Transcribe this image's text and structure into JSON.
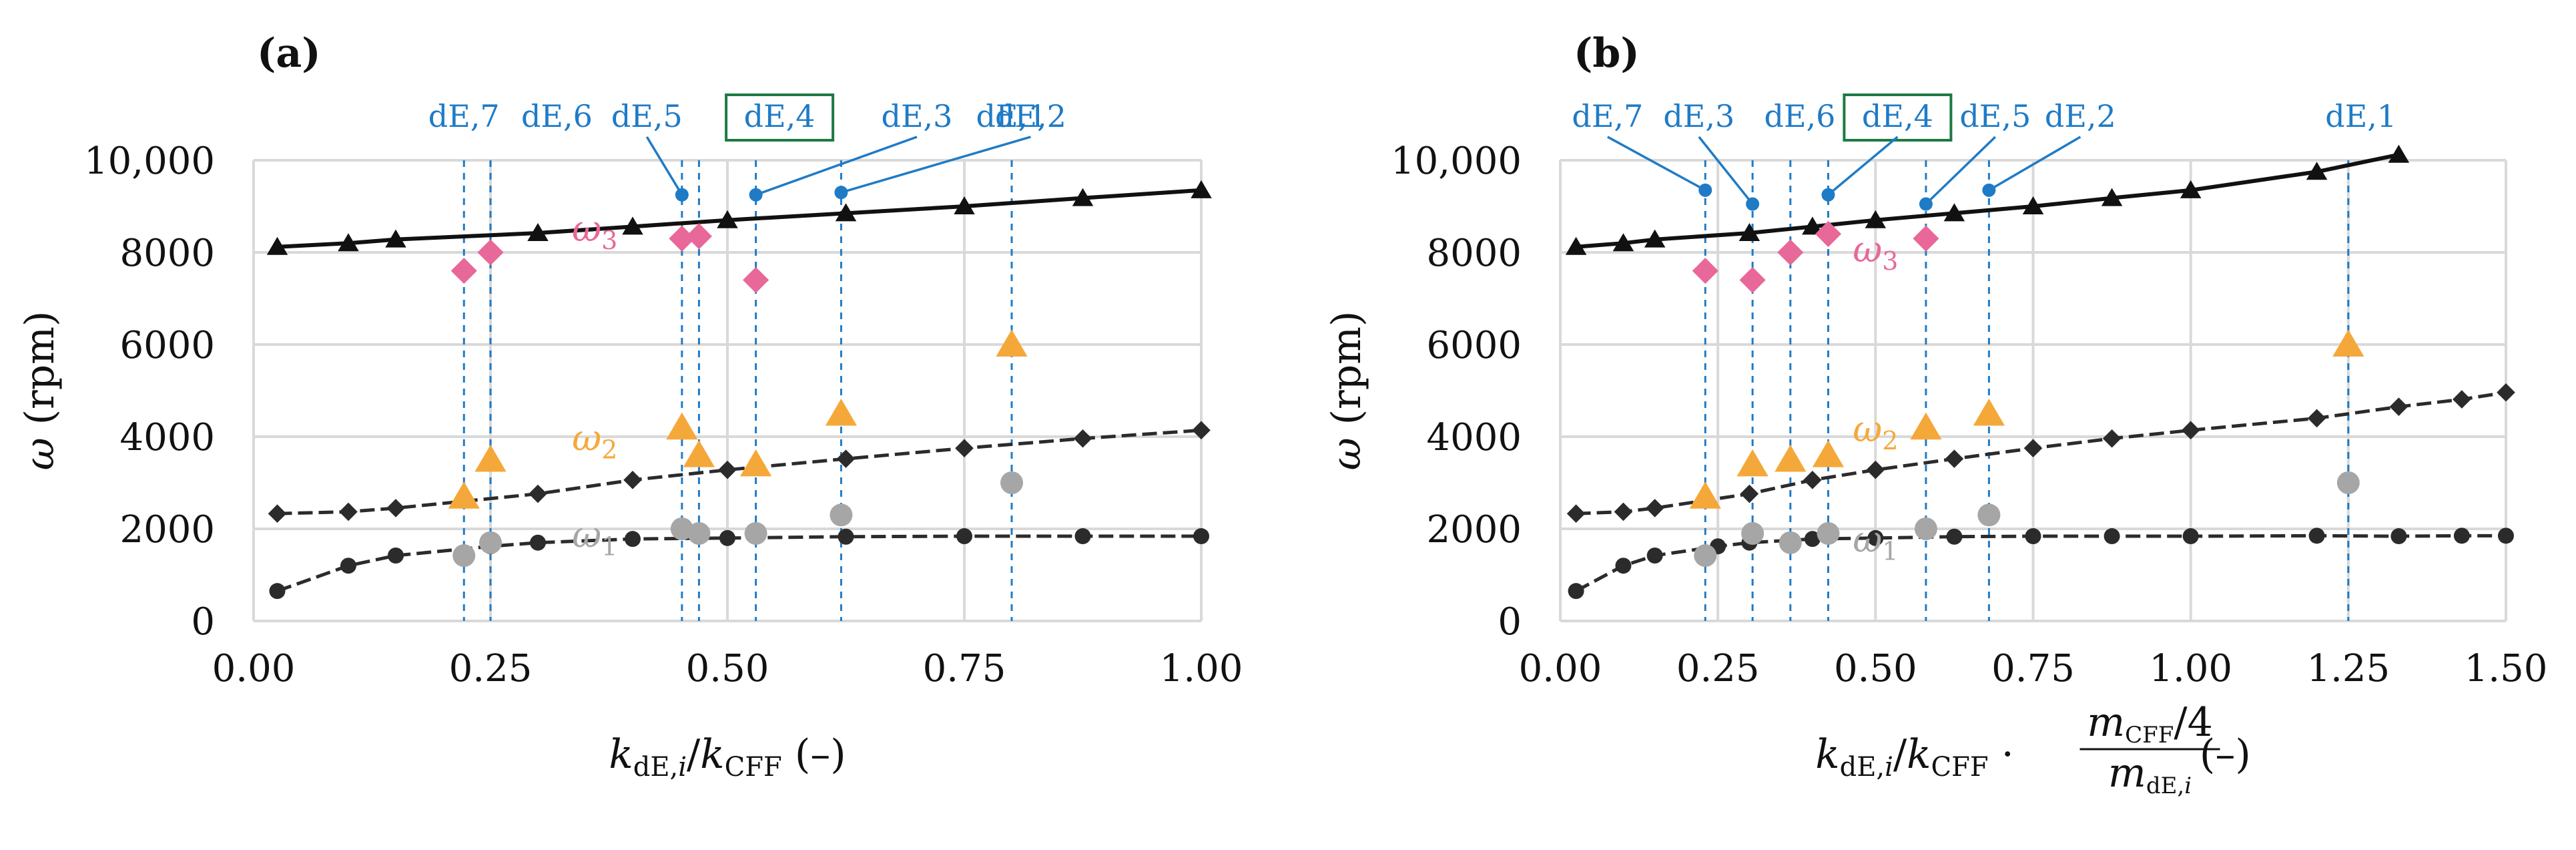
{
  "figure": {
    "panel_labels": [
      "(a)",
      "(b)"
    ]
  },
  "style": {
    "colors": {
      "omega1_curve": "#2b2b2b",
      "omega2_curve": "#2b2b2b",
      "omega3_curve": "#111111",
      "omega1_marker": "#a6a6a6",
      "omega2_marker": "#f5a83a",
      "omega3_marker": "#e8689a",
      "de_line": "#1f7bc6",
      "de_highlight_box": "#1e7a44",
      "grid": "#d9d9d9"
    }
  },
  "chart_data": [
    {
      "type": "scatter",
      "panel": "(a)",
      "xlabel": "k_dE,i / k_CFF (–)",
      "xlabel_parts": {
        "k1": "k",
        "sub1": "dE,",
        "i": "i",
        "slash": "/",
        "k2": "k",
        "sub2": "CFF",
        "unit": "(–)"
      },
      "ylabel": "ω (rpm)",
      "ylabel_parts": {
        "sym": "ω",
        "unit": "(rpm)"
      },
      "xlim": [
        0,
        1
      ],
      "ylim": [
        0,
        10000
      ],
      "xticks": [
        0,
        0.25,
        0.5,
        0.75,
        1
      ],
      "xtick_labels": [
        "0.00",
        "0.25",
        "0.50",
        "0.75",
        "1.00"
      ],
      "yticks": [
        0,
        2000,
        4000,
        6000,
        8000,
        10000
      ],
      "ytick_labels": [
        "0",
        "2000",
        "4000",
        "6000",
        "8000",
        "10,000"
      ],
      "grid": true,
      "series_labels": [
        {
          "sym": "ω",
          "sub": "3",
          "x": 0.36,
          "y": 8250,
          "color": "#e8689a"
        },
        {
          "sym": "ω",
          "sub": "2",
          "x": 0.36,
          "y": 3700,
          "color": "#f5a83a"
        },
        {
          "sym": "ω",
          "sub": "1",
          "x": 0.36,
          "y": 1600,
          "color": "#a6a6a6"
        }
      ],
      "curves": [
        {
          "name": "ω1 CFF",
          "marker": "circle",
          "line": "dashed",
          "x": [
            0.025,
            0.1,
            0.15,
            0.25,
            0.3,
            0.4,
            0.5,
            0.625,
            0.75,
            0.875,
            1.0
          ],
          "y": [
            650,
            1200,
            1420,
            1620,
            1700,
            1780,
            1800,
            1830,
            1840,
            1840,
            1840
          ]
        },
        {
          "name": "ω2 CFF",
          "marker": "diamond",
          "line": "dashed",
          "x": [
            0.025,
            0.1,
            0.15,
            0.3,
            0.4,
            0.5,
            0.625,
            0.75,
            0.875,
            1.0
          ],
          "y": [
            2330,
            2370,
            2450,
            2760,
            3060,
            3280,
            3520,
            3750,
            3960,
            4140
          ]
        },
        {
          "name": "ω3 CFF",
          "marker": "triangle",
          "line": "solid",
          "x": [
            0.025,
            0.1,
            0.15,
            0.3,
            0.4,
            0.5,
            0.625,
            0.75,
            0.875,
            1.0
          ],
          "y": [
            8120,
            8200,
            8280,
            8420,
            8560,
            8700,
            8850,
            9000,
            9180,
            9350
          ]
        }
      ],
      "points": {
        "omega1": {
          "marker": "circle",
          "x": [
            0.222,
            0.25,
            0.452,
            0.47,
            0.53,
            0.62,
            0.8
          ],
          "y": [
            1420,
            1700,
            2000,
            1900,
            1900,
            2300,
            3000
          ]
        },
        "omega2": {
          "marker": "triangle",
          "x": [
            0.222,
            0.25,
            0.452,
            0.47,
            0.53,
            0.62,
            0.8
          ],
          "y": [
            2700,
            3500,
            4200,
            3600,
            3400,
            4500,
            6000
          ]
        },
        "omega3": {
          "marker": "diamond",
          "x": [
            0.222,
            0.25,
            0.452,
            0.47,
            0.53
          ],
          "y": [
            7600,
            8000,
            8300,
            8350,
            7400
          ]
        }
      },
      "de_markers": [
        {
          "label": "dE,7",
          "x": 0.222,
          "label_x": 0.222
        },
        {
          "label": "dE,6",
          "x": 0.25,
          "label_x": 0.32
        },
        {
          "label": "dE,5",
          "x": 0.452,
          "label_x": 0.415,
          "dot_y": 9250
        },
        {
          "label": "dE,4",
          "x": 0.47,
          "label_x": 0.555,
          "highlight": true
        },
        {
          "label": "dE,3",
          "x": 0.53,
          "label_x": 0.7,
          "dot_y": 9250
        },
        {
          "label": "dE,2",
          "x": 0.62,
          "label_x": 0.82,
          "dot_y": 9300
        },
        {
          "label": "dE,1",
          "x": 0.8,
          "label_x": 0.8
        }
      ]
    },
    {
      "type": "scatter",
      "panel": "(b)",
      "xlabel": "k_dE,i / k_CFF · (m_CFF/4)/m_dE,i (–)",
      "xlabel_parts": {
        "k1": "k",
        "sub1": "dE,",
        "i": "i",
        "slash": "/",
        "k2": "k",
        "sub2": "CFF",
        "dot": "·",
        "m_num": "m",
        "m_num_sub": "CFF",
        "m_num_tail": "/4",
        "m_den": "m",
        "m_den_sub": "dE,",
        "m_den_i": "i",
        "unit": "(–)"
      },
      "ylabel": "ω (rpm)",
      "ylabel_parts": {
        "sym": "ω",
        "unit": "(rpm)"
      },
      "xlim": [
        0,
        1.5
      ],
      "ylim": [
        0,
        10000
      ],
      "xticks": [
        0,
        0.25,
        0.5,
        0.75,
        1,
        1.25,
        1.5
      ],
      "xtick_labels": [
        "0.00",
        "0.25",
        "0.50",
        "0.75",
        "1.00",
        "1.25",
        "1.50"
      ],
      "yticks": [
        0,
        2000,
        4000,
        6000,
        8000,
        10000
      ],
      "ytick_labels": [
        "0",
        "2000",
        "4000",
        "6000",
        "8000",
        "10,000"
      ],
      "grid": true,
      "series_labels": [
        {
          "sym": "ω",
          "sub": "3",
          "x": 0.5,
          "y": 7800,
          "color": "#e8689a"
        },
        {
          "sym": "ω",
          "sub": "2",
          "x": 0.5,
          "y": 3900,
          "color": "#f5a83a"
        },
        {
          "sym": "ω",
          "sub": "1",
          "x": 0.5,
          "y": 1500,
          "color": "#a6a6a6"
        }
      ],
      "curves": [
        {
          "name": "ω1 CFF",
          "marker": "circle",
          "line": "dashed",
          "x": [
            0.025,
            0.1,
            0.15,
            0.25,
            0.3,
            0.4,
            0.5,
            0.625,
            0.75,
            0.875,
            1.0,
            1.2,
            1.33,
            1.43,
            1.5
          ],
          "y": [
            650,
            1200,
            1420,
            1620,
            1700,
            1780,
            1800,
            1830,
            1840,
            1840,
            1840,
            1850,
            1840,
            1850,
            1850
          ]
        },
        {
          "name": "ω2 CFF",
          "marker": "diamond",
          "line": "dashed",
          "x": [
            0.025,
            0.1,
            0.15,
            0.3,
            0.4,
            0.5,
            0.625,
            0.75,
            0.875,
            1.0,
            1.2,
            1.33,
            1.43,
            1.5
          ],
          "y": [
            2330,
            2370,
            2450,
            2760,
            3060,
            3280,
            3520,
            3750,
            3960,
            4140,
            4400,
            4650,
            4810,
            4960
          ]
        },
        {
          "name": "ω3 CFF",
          "marker": "triangle",
          "line": "solid",
          "x": [
            0.025,
            0.1,
            0.15,
            0.3,
            0.4,
            0.5,
            0.625,
            0.75,
            0.875,
            1.0,
            1.2,
            1.33
          ],
          "y": [
            8120,
            8200,
            8280,
            8420,
            8560,
            8700,
            8850,
            9000,
            9180,
            9350,
            9750,
            10120
          ]
        }
      ],
      "points": {
        "omega1": {
          "marker": "circle",
          "x": [
            0.23,
            0.305,
            0.365,
            0.425,
            0.58,
            0.68,
            1.25
          ],
          "y": [
            1420,
            1900,
            1700,
            1900,
            2000,
            2300,
            3000
          ]
        },
        "omega2": {
          "marker": "triangle",
          "x": [
            0.23,
            0.305,
            0.365,
            0.425,
            0.58,
            0.68,
            1.25
          ],
          "y": [
            2700,
            3400,
            3500,
            3600,
            4200,
            4500,
            6000
          ]
        },
        "omega3": {
          "marker": "diamond",
          "x": [
            0.23,
            0.305,
            0.365,
            0.425,
            0.58
          ],
          "y": [
            7600,
            7400,
            8000,
            8400,
            8300
          ]
        }
      },
      "de_markers": [
        {
          "label": "dE,7",
          "x": 0.23,
          "label_x": 0.075,
          "dot_y": 9350
        },
        {
          "label": "dE,3",
          "x": 0.305,
          "label_x": 0.22,
          "dot_y": 9050
        },
        {
          "label": "dE,6",
          "x": 0.365,
          "label_x": 0.38
        },
        {
          "label": "dE,4",
          "x": 0.425,
          "label_x": 0.535,
          "highlight": true,
          "dot_y": 9250
        },
        {
          "label": "dE,5",
          "x": 0.58,
          "label_x": 0.69,
          "dot_y": 9050
        },
        {
          "label": "dE,2",
          "x": 0.68,
          "label_x": 0.825,
          "dot_y": 9350
        },
        {
          "label": "dE,1",
          "x": 1.25,
          "label_x": 1.27
        }
      ]
    }
  ]
}
